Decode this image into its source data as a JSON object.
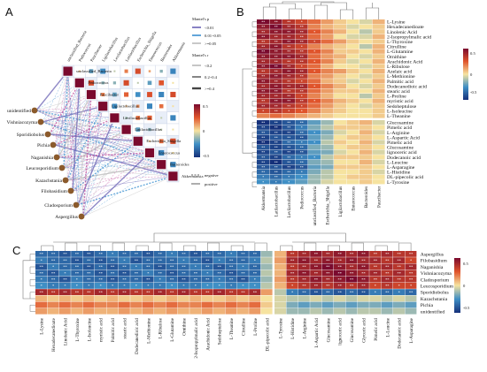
{
  "figure": {
    "panel_labels": [
      "A",
      "B",
      "C"
    ]
  },
  "chart_data": [
    {
      "type": "heatmap",
      "panel": "A",
      "title": "",
      "taxa": [
        "unclassified_Bacteria",
        "Pediococcus",
        "Paucibacter",
        "Ligilactobacillus",
        "Levilactobacillus",
        "Latilactobacillus",
        "Escherichia_Shigella",
        "Enterococcus",
        "Bacteroides",
        "Akkermansia"
      ],
      "fungi_nodes": [
        "unidentified",
        "Vishniacozyma",
        "Sporidiobolus",
        "Pichia",
        "Naganishia",
        "Leucosporidium",
        "Kazachstania",
        "Filobasidium",
        "Cladosporium",
        "Aspergillus"
      ],
      "legend_mantel_p": {
        "title": "Mantel's p",
        "items": [
          "<0.01",
          "0.01~0.05",
          ">=0.05"
        ]
      },
      "legend_mantel_r": {
        "title": "Mantel's r",
        "items": [
          "<0.2",
          "0.2~0.4",
          ">=0.4"
        ]
      },
      "colorbar": {
        "min": -0.5,
        "max": 0.5,
        "ticks": [
          "0.5",
          "0",
          "-0.5"
        ]
      },
      "legend_sign": [
        "negative",
        "positive"
      ]
    },
    {
      "type": "heatmap",
      "panel": "B",
      "title": "",
      "rows": [
        "L-Lysine",
        "Hexadecanedioate",
        "Linolenic Acid",
        "2-Isopropylmalic acid",
        "L-Thyroxine",
        "Citrulline",
        "L-Glutamine",
        "Ornithine",
        "Arachidonic Acid",
        "L-Ribulose",
        "Azelaic acid",
        "L-Methionine",
        "Palmitic acid",
        "Dodecanedioic acid",
        "stearic acid",
        "L-Proline",
        "myristic acid",
        "Sedoheptulose",
        "L-Isoleucine",
        "L-Theanine",
        "Glucosamine",
        "Pimelic acid",
        "L-Arginine",
        "L-Aspartic Acid",
        "Pimelic acid",
        "Glucosamine",
        "lignoceric acid",
        "Dodecanoic acid",
        "L-Leucine",
        "L-Asparagine",
        "L-Histidine",
        "DL-pipecolic acid",
        "L-Tyrosine"
      ],
      "columns": [
        "Akkermansia",
        "Latilactobacillus",
        "Levilactobacillus",
        "Pediococcus",
        "unclassified_Bacteria",
        "Escherichia_Shigella",
        "Ligilactobacillus",
        "Enterococcus",
        "Bacteroides",
        "Paucibacter"
      ],
      "split_after_row": 19,
      "values": [
        [
          0.55,
          0.5,
          0.4,
          0.35,
          0.25,
          0.15,
          0.05,
          0.0,
          -0.05,
          0.1
        ],
        [
          0.5,
          0.55,
          0.45,
          0.4,
          0.2,
          0.1,
          0.05,
          -0.05,
          0.0,
          0.05
        ],
        [
          0.45,
          0.5,
          0.5,
          0.45,
          0.3,
          0.2,
          0.1,
          0.0,
          -0.1,
          0.05
        ],
        [
          0.5,
          0.45,
          0.45,
          0.4,
          0.25,
          0.15,
          0.0,
          -0.05,
          -0.05,
          0.1
        ],
        [
          0.4,
          0.45,
          0.5,
          0.45,
          0.35,
          0.25,
          0.15,
          0.05,
          0.0,
          0.05
        ],
        [
          0.45,
          0.5,
          0.4,
          0.35,
          0.2,
          0.1,
          0.05,
          0.0,
          -0.1,
          0.1
        ],
        [
          0.55,
          0.5,
          0.45,
          0.4,
          0.3,
          0.2,
          0.05,
          0.05,
          0.0,
          0.1
        ],
        [
          0.5,
          0.5,
          0.5,
          0.45,
          0.25,
          0.15,
          0.1,
          0.0,
          -0.05,
          0.05
        ],
        [
          0.45,
          0.45,
          0.4,
          0.4,
          0.3,
          0.2,
          0.05,
          -0.05,
          0.0,
          0.1
        ],
        [
          0.5,
          0.55,
          0.45,
          0.35,
          0.25,
          0.1,
          0.0,
          0.0,
          -0.05,
          0.05
        ],
        [
          0.4,
          0.45,
          0.5,
          0.45,
          0.3,
          0.2,
          0.15,
          0.05,
          0.0,
          0.1
        ],
        [
          0.45,
          0.5,
          0.45,
          0.4,
          0.2,
          0.15,
          0.05,
          0.0,
          -0.05,
          0.05
        ],
        [
          0.5,
          0.45,
          0.4,
          0.35,
          0.25,
          0.1,
          0.05,
          -0.05,
          0.0,
          0.1
        ],
        [
          0.45,
          0.5,
          0.45,
          0.45,
          0.3,
          0.2,
          0.1,
          0.0,
          -0.05,
          0.05
        ],
        [
          0.5,
          0.5,
          0.4,
          0.4,
          0.25,
          0.15,
          0.05,
          0.05,
          0.0,
          0.1
        ],
        [
          0.45,
          0.45,
          0.45,
          0.35,
          0.2,
          0.1,
          0.0,
          0.0,
          -0.1,
          0.05
        ],
        [
          0.4,
          0.5,
          0.5,
          0.4,
          0.3,
          0.2,
          0.1,
          0.05,
          0.0,
          0.1
        ],
        [
          0.45,
          0.45,
          0.4,
          0.35,
          0.25,
          0.15,
          0.05,
          0.0,
          -0.05,
          0.05
        ],
        [
          0.35,
          0.4,
          0.35,
          0.3,
          0.2,
          0.1,
          0.05,
          0.0,
          0.0,
          0.05
        ],
        [
          0.2,
          0.25,
          0.2,
          0.15,
          0.1,
          0.05,
          0.0,
          0.0,
          0.0,
          0.05
        ],
        [
          -0.55,
          -0.5,
          -0.45,
          -0.4,
          -0.25,
          -0.15,
          0.0,
          0.05,
          0.1,
          -0.05
        ],
        [
          -0.5,
          -0.55,
          -0.45,
          -0.35,
          -0.2,
          -0.1,
          0.05,
          0.05,
          0.05,
          0.0
        ],
        [
          -0.45,
          -0.5,
          -0.5,
          -0.4,
          -0.3,
          -0.2,
          -0.05,
          0.0,
          0.1,
          -0.05
        ],
        [
          -0.5,
          -0.45,
          -0.45,
          -0.45,
          -0.25,
          -0.15,
          0.0,
          0.05,
          0.05,
          0.0
        ],
        [
          -0.55,
          -0.5,
          -0.4,
          -0.35,
          -0.3,
          -0.1,
          0.05,
          0.0,
          0.1,
          -0.05
        ],
        [
          -0.45,
          -0.5,
          -0.45,
          -0.4,
          -0.2,
          -0.15,
          0.0,
          0.05,
          0.05,
          0.0
        ],
        [
          -0.5,
          -0.45,
          -0.5,
          -0.45,
          -0.25,
          -0.2,
          -0.05,
          0.0,
          0.1,
          -0.05
        ],
        [
          -0.45,
          -0.5,
          -0.4,
          -0.35,
          -0.3,
          -0.1,
          0.05,
          0.05,
          0.05,
          0.0
        ],
        [
          -0.5,
          -0.55,
          -0.45,
          -0.4,
          -0.2,
          -0.15,
          0.0,
          0.0,
          0.1,
          -0.05
        ],
        [
          -0.45,
          -0.45,
          -0.5,
          -0.45,
          -0.25,
          -0.2,
          0.05,
          0.05,
          0.05,
          0.0
        ],
        [
          -0.4,
          -0.45,
          -0.4,
          -0.35,
          -0.2,
          -0.1,
          0.0,
          0.0,
          0.05,
          -0.05
        ],
        [
          -0.35,
          -0.4,
          -0.35,
          -0.3,
          -0.15,
          -0.1,
          0.0,
          0.05,
          0.05,
          0.0
        ],
        [
          -0.3,
          -0.35,
          -0.3,
          -0.25,
          -0.15,
          -0.05,
          0.0,
          0.0,
          0.05,
          0.0
        ]
      ],
      "colorbar": {
        "min": -0.5,
        "max": 0.5,
        "ticks": [
          "0.5",
          "0",
          "-0.5"
        ]
      }
    },
    {
      "type": "heatmap",
      "panel": "C",
      "title": "",
      "rows": [
        "Aspergillus",
        "Filobasidium",
        "Naganishia",
        "Vishniacozyma",
        "Cladosporium",
        "Leucosporidium",
        "Sporidiobolus",
        "Kazachstania",
        "Pichia",
        "unidentified"
      ],
      "columns": [
        "L-Lysine",
        "Hexadecanedioate",
        "Linolenic Acid",
        "L-Thyroxine",
        "L-Isoleucine",
        "myristic acid",
        "Palmitic acid",
        "stearic acid",
        "Dodecanedioic acid",
        "L-Methionine",
        "L-Ribulose",
        "L-Glutamine",
        "Ornithine",
        "2-Isopropylmalic acid",
        "Arachidonic Acid",
        "Sedoheptulose",
        "L-Theanine",
        "Citrulline",
        "L-Proline",
        "DL-pipecolic acid",
        "L-Tyrosine",
        "L-Histidine",
        "L-Arginine",
        "L-Aspartic Acid",
        "Glucosamine",
        "lignoceric acid",
        "Glucosamine",
        "Glyceric acid",
        "Pimelic acid",
        "L-Leucine",
        "Dodecanoic acid",
        "L-Asparagine"
      ],
      "split_after_column": 19,
      "values": [
        [
          -0.4,
          -0.4,
          -0.45,
          -0.4,
          -0.45,
          -0.4,
          -0.35,
          -0.4,
          -0.4,
          -0.45,
          -0.4,
          -0.35,
          -0.4,
          -0.45,
          -0.4,
          -0.4,
          -0.35,
          -0.4,
          -0.4,
          -0.15,
          0.1,
          0.4,
          0.45,
          0.5,
          0.45,
          0.5,
          0.45,
          0.5,
          0.4,
          0.45,
          0.4,
          0.4
        ],
        [
          -0.35,
          -0.4,
          -0.4,
          -0.45,
          -0.4,
          -0.45,
          -0.4,
          -0.35,
          -0.45,
          -0.4,
          -0.4,
          -0.4,
          -0.35,
          -0.4,
          -0.45,
          -0.35,
          -0.4,
          -0.4,
          -0.35,
          -0.1,
          0.15,
          0.45,
          0.5,
          0.45,
          0.5,
          0.45,
          0.5,
          0.45,
          0.45,
          0.4,
          0.45,
          0.35
        ],
        [
          -0.45,
          -0.35,
          -0.4,
          -0.4,
          -0.45,
          -0.4,
          -0.45,
          -0.4,
          -0.35,
          -0.4,
          -0.45,
          -0.4,
          -0.4,
          -0.35,
          -0.4,
          -0.45,
          -0.4,
          -0.35,
          -0.4,
          -0.15,
          0.1,
          0.4,
          0.45,
          0.5,
          0.55,
          0.5,
          0.45,
          0.5,
          0.4,
          0.45,
          0.4,
          0.45
        ],
        [
          -0.4,
          -0.45,
          -0.35,
          -0.4,
          -0.4,
          -0.45,
          -0.4,
          -0.45,
          -0.4,
          -0.35,
          -0.4,
          -0.45,
          -0.4,
          -0.4,
          -0.35,
          -0.4,
          -0.45,
          -0.4,
          -0.4,
          -0.1,
          0.1,
          0.45,
          0.5,
          0.45,
          0.5,
          0.55,
          0.5,
          0.45,
          0.45,
          0.4,
          0.45,
          0.4
        ],
        [
          -0.35,
          -0.4,
          -0.45,
          -0.35,
          -0.4,
          -0.4,
          -0.45,
          -0.4,
          -0.4,
          -0.45,
          -0.35,
          -0.4,
          -0.45,
          -0.4,
          -0.4,
          -0.35,
          -0.4,
          -0.45,
          -0.35,
          -0.15,
          0.15,
          0.4,
          0.45,
          0.5,
          0.45,
          0.5,
          0.55,
          0.5,
          0.4,
          0.45,
          0.4,
          0.4
        ],
        [
          -0.3,
          -0.35,
          -0.35,
          -0.3,
          -0.35,
          -0.3,
          -0.35,
          -0.35,
          -0.3,
          -0.35,
          -0.35,
          -0.3,
          -0.35,
          -0.35,
          -0.3,
          -0.3,
          -0.35,
          -0.3,
          -0.3,
          -0.1,
          0.1,
          0.35,
          0.4,
          0.45,
          0.4,
          0.45,
          0.4,
          0.45,
          0.35,
          0.4,
          0.35,
          0.35
        ],
        [
          0.45,
          0.4,
          0.45,
          0.4,
          0.4,
          0.45,
          0.4,
          0.45,
          0.4,
          0.4,
          0.45,
          0.4,
          0.45,
          0.4,
          0.4,
          0.45,
          0.4,
          0.4,
          0.45,
          0.15,
          -0.1,
          -0.35,
          -0.4,
          -0.45,
          -0.4,
          -0.45,
          -0.4,
          -0.45,
          -0.35,
          -0.4,
          -0.35,
          -0.4
        ],
        [
          0.1,
          0.05,
          0.1,
          0.05,
          0.1,
          0.05,
          0.1,
          0.05,
          0.05,
          0.1,
          0.05,
          0.1,
          0.05,
          0.1,
          0.05,
          0.05,
          0.1,
          0.05,
          0.1,
          0.0,
          -0.05,
          -0.1,
          -0.1,
          -0.05,
          -0.1,
          -0.05,
          -0.1,
          -0.05,
          -0.05,
          -0.1,
          -0.05,
          -0.1
        ],
        [
          0.25,
          0.2,
          0.25,
          0.2,
          0.25,
          0.2,
          0.2,
          0.25,
          0.2,
          0.25,
          0.2,
          0.25,
          0.2,
          0.2,
          0.25,
          0.2,
          0.25,
          0.2,
          0.25,
          0.05,
          -0.05,
          -0.2,
          -0.25,
          -0.2,
          -0.25,
          -0.2,
          -0.25,
          -0.2,
          -0.2,
          -0.25,
          -0.2,
          -0.25
        ],
        [
          0.15,
          0.1,
          0.15,
          0.1,
          0.15,
          0.1,
          0.1,
          0.15,
          0.1,
          0.15,
          0.1,
          0.15,
          0.1,
          0.1,
          0.15,
          0.1,
          0.15,
          0.1,
          0.15,
          0.0,
          -0.05,
          -0.15,
          -0.15,
          -0.1,
          -0.15,
          -0.1,
          -0.15,
          -0.1,
          -0.1,
          -0.15,
          -0.1,
          -0.15
        ]
      ],
      "colorbar": {
        "min": -0.5,
        "max": 0.5,
        "ticks": [
          "0.5",
          "0",
          "-0.5"
        ]
      }
    }
  ]
}
